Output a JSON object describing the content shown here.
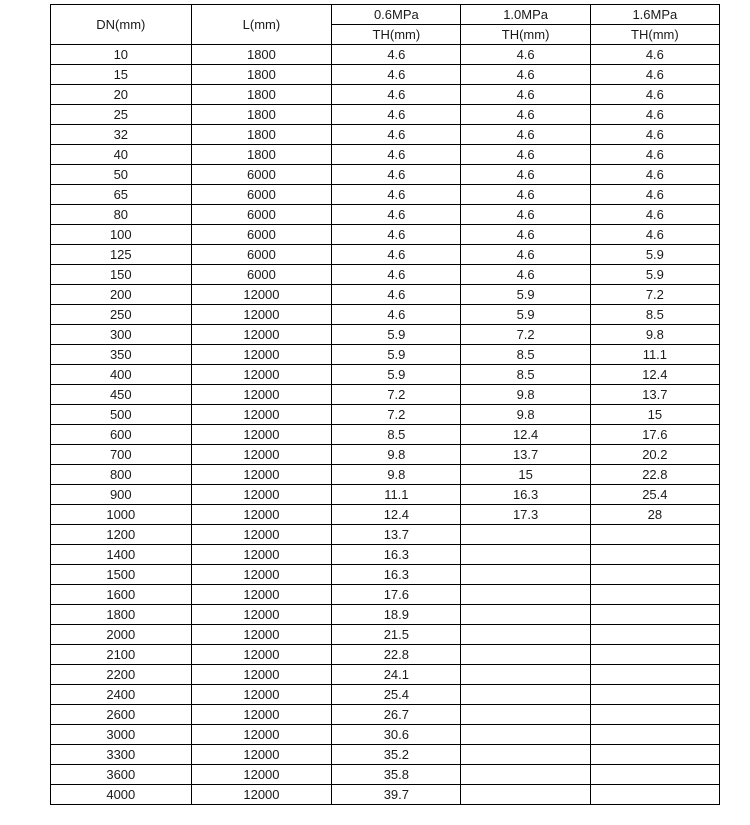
{
  "header": {
    "dn": "DN(mm)",
    "l": "L(mm)",
    "pressures": [
      "0.6MPa",
      "1.0MPa",
      "1.6MPa"
    ],
    "th": "TH(mm)"
  },
  "rows": [
    {
      "dn": "10",
      "l": "1800",
      "p06": "4.6",
      "p10": "4.6",
      "p16": "4.6"
    },
    {
      "dn": "15",
      "l": "1800",
      "p06": "4.6",
      "p10": "4.6",
      "p16": "4.6"
    },
    {
      "dn": "20",
      "l": "1800",
      "p06": "4.6",
      "p10": "4.6",
      "p16": "4.6"
    },
    {
      "dn": "25",
      "l": "1800",
      "p06": "4.6",
      "p10": "4.6",
      "p16": "4.6"
    },
    {
      "dn": "32",
      "l": "1800",
      "p06": "4.6",
      "p10": "4.6",
      "p16": "4.6"
    },
    {
      "dn": "40",
      "l": "1800",
      "p06": "4.6",
      "p10": "4.6",
      "p16": "4.6"
    },
    {
      "dn": "50",
      "l": "6000",
      "p06": "4.6",
      "p10": "4.6",
      "p16": "4.6"
    },
    {
      "dn": "65",
      "l": "6000",
      "p06": "4.6",
      "p10": "4.6",
      "p16": "4.6"
    },
    {
      "dn": "80",
      "l": "6000",
      "p06": "4.6",
      "p10": "4.6",
      "p16": "4.6"
    },
    {
      "dn": "100",
      "l": "6000",
      "p06": "4.6",
      "p10": "4.6",
      "p16": "4.6"
    },
    {
      "dn": "125",
      "l": "6000",
      "p06": "4.6",
      "p10": "4.6",
      "p16": "5.9"
    },
    {
      "dn": "150",
      "l": "6000",
      "p06": "4.6",
      "p10": "4.6",
      "p16": "5.9"
    },
    {
      "dn": "200",
      "l": "12000",
      "p06": "4.6",
      "p10": "5.9",
      "p16": "7.2"
    },
    {
      "dn": "250",
      "l": "12000",
      "p06": "4.6",
      "p10": "5.9",
      "p16": "8.5"
    },
    {
      "dn": "300",
      "l": "12000",
      "p06": "5.9",
      "p10": "7.2",
      "p16": "9.8"
    },
    {
      "dn": "350",
      "l": "12000",
      "p06": "5.9",
      "p10": "8.5",
      "p16": "11.1"
    },
    {
      "dn": "400",
      "l": "12000",
      "p06": "5.9",
      "p10": "8.5",
      "p16": "12.4"
    },
    {
      "dn": "450",
      "l": "12000",
      "p06": "7.2",
      "p10": "9.8",
      "p16": "13.7"
    },
    {
      "dn": "500",
      "l": "12000",
      "p06": "7.2",
      "p10": "9.8",
      "p16": "15"
    },
    {
      "dn": "600",
      "l": "12000",
      "p06": "8.5",
      "p10": "12.4",
      "p16": "17.6"
    },
    {
      "dn": "700",
      "l": "12000",
      "p06": "9.8",
      "p10": "13.7",
      "p16": "20.2"
    },
    {
      "dn": "800",
      "l": "12000",
      "p06": "9.8",
      "p10": "15",
      "p16": "22.8"
    },
    {
      "dn": "900",
      "l": "12000",
      "p06": "11.1",
      "p10": "16.3",
      "p16": "25.4"
    },
    {
      "dn": "1000",
      "l": "12000",
      "p06": "12.4",
      "p10": "17.3",
      "p16": "28"
    },
    {
      "dn": "1200",
      "l": "12000",
      "p06": "13.7",
      "p10": "",
      "p16": ""
    },
    {
      "dn": "1400",
      "l": "12000",
      "p06": "16.3",
      "p10": "",
      "p16": ""
    },
    {
      "dn": "1500",
      "l": "12000",
      "p06": "16.3",
      "p10": "",
      "p16": ""
    },
    {
      "dn": "1600",
      "l": "12000",
      "p06": "17.6",
      "p10": "",
      "p16": ""
    },
    {
      "dn": "1800",
      "l": "12000",
      "p06": "18.9",
      "p10": "",
      "p16": ""
    },
    {
      "dn": "2000",
      "l": "12000",
      "p06": "21.5",
      "p10": "",
      "p16": ""
    },
    {
      "dn": "2100",
      "l": "12000",
      "p06": "22.8",
      "p10": "",
      "p16": ""
    },
    {
      "dn": "2200",
      "l": "12000",
      "p06": "24.1",
      "p10": "",
      "p16": ""
    },
    {
      "dn": "2400",
      "l": "12000",
      "p06": "25.4",
      "p10": "",
      "p16": ""
    },
    {
      "dn": "2600",
      "l": "12000",
      "p06": "26.7",
      "p10": "",
      "p16": ""
    },
    {
      "dn": "3000",
      "l": "12000",
      "p06": "30.6",
      "p10": "",
      "p16": ""
    },
    {
      "dn": "3300",
      "l": "12000",
      "p06": "35.2",
      "p10": "",
      "p16": ""
    },
    {
      "dn": "3600",
      "l": "12000",
      "p06": "35.8",
      "p10": "",
      "p16": ""
    },
    {
      "dn": "4000",
      "l": "12000",
      "p06": "39.7",
      "p10": "",
      "p16": ""
    }
  ]
}
